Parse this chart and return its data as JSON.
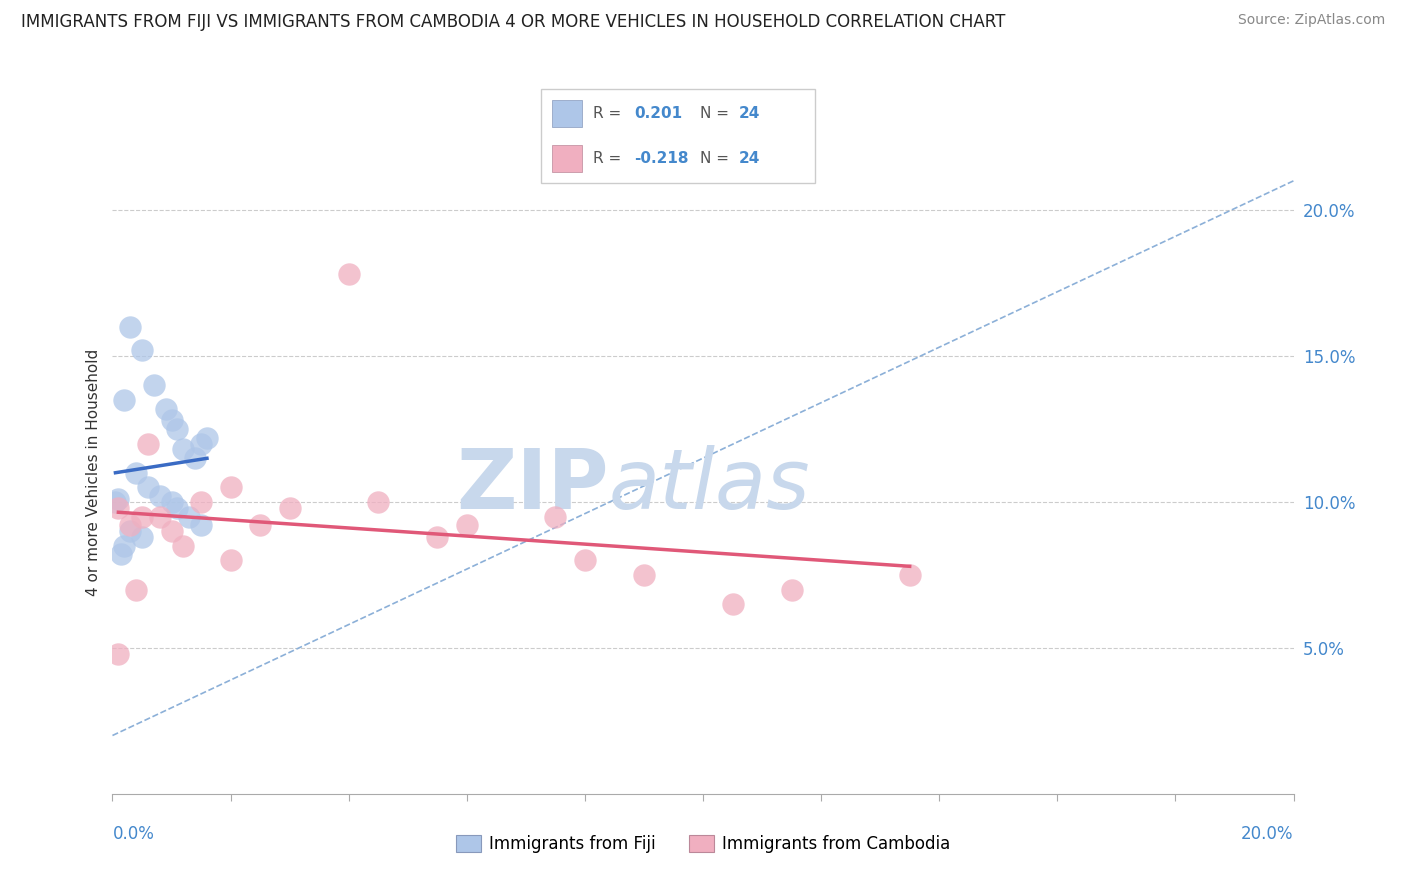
{
  "title": "IMMIGRANTS FROM FIJI VS IMMIGRANTS FROM CAMBODIA 4 OR MORE VEHICLES IN HOUSEHOLD CORRELATION CHART",
  "source": "Source: ZipAtlas.com",
  "ylabel": "4 or more Vehicles in Household",
  "xlim": [
    0.0,
    20.0
  ],
  "ylim": [
    0.0,
    22.0
  ],
  "ytick_vals": [
    5.0,
    10.0,
    15.0,
    20.0
  ],
  "ytick_labels": [
    "5.0%",
    "10.0%",
    "15.0%",
    "20.0%"
  ],
  "fiji_r": 0.201,
  "fiji_n": 24,
  "cambodia_r": -0.218,
  "cambodia_n": 24,
  "fiji_dot_color": "#aec6e8",
  "fiji_line_color": "#3a6bc4",
  "cambodia_dot_color": "#f0afc0",
  "cambodia_line_color": "#e05878",
  "dash_line_color": "#8cb0d8",
  "watermark_zip": "ZIP",
  "watermark_atlas": "atlas",
  "watermark_color": "#c8d8ec",
  "fiji_points_x": [
    0.3,
    0.5,
    0.7,
    0.9,
    1.0,
    1.1,
    1.2,
    1.4,
    1.5,
    1.6,
    0.2,
    0.4,
    0.6,
    0.8,
    1.0,
    1.1,
    1.3,
    1.5,
    0.3,
    0.5,
    0.05,
    0.1,
    0.2,
    0.15
  ],
  "fiji_points_y": [
    16.0,
    15.2,
    14.0,
    13.2,
    12.8,
    12.5,
    11.8,
    11.5,
    12.0,
    12.2,
    13.5,
    11.0,
    10.5,
    10.2,
    10.0,
    9.8,
    9.5,
    9.2,
    9.0,
    8.8,
    10.0,
    10.1,
    8.5,
    8.2
  ],
  "cambodia_points_x": [
    0.1,
    0.3,
    0.6,
    0.8,
    1.0,
    1.5,
    2.0,
    2.5,
    3.0,
    4.0,
    4.5,
    5.5,
    6.0,
    7.5,
    8.0,
    9.0,
    10.5,
    11.5,
    13.5,
    0.5,
    1.2,
    2.0,
    0.1,
    0.4
  ],
  "cambodia_points_y": [
    9.8,
    9.2,
    12.0,
    9.5,
    9.0,
    10.0,
    10.5,
    9.2,
    9.8,
    17.8,
    10.0,
    8.8,
    9.2,
    9.5,
    8.0,
    7.5,
    6.5,
    7.0,
    7.5,
    9.5,
    8.5,
    8.0,
    4.8,
    7.0
  ]
}
